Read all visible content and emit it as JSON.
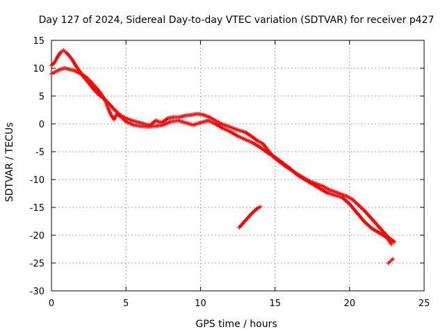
{
  "chart_data": {
    "type": "scatter",
    "title": "Day 127 of 2024, Sidereal Day-to-day VTEC variation (SDTVAR) for receiver p427",
    "xlabel": "GPS time / hours",
    "ylabel": "SDTVAR / TECUs",
    "xlim": [
      0,
      25
    ],
    "ylim": [
      -30,
      15
    ],
    "xticks": [
      0,
      5,
      10,
      15,
      20,
      25
    ],
    "yticks": [
      15,
      10,
      5,
      0,
      -5,
      -10,
      -15,
      -20,
      -25,
      -30
    ],
    "grid": true,
    "marker": "plus",
    "color": "#ff0000",
    "series": [
      {
        "name": "upper-track",
        "points": [
          [
            0.0,
            10.5
          ],
          [
            0.2,
            11.0
          ],
          [
            0.4,
            12.0
          ],
          [
            0.6,
            12.8
          ],
          [
            0.8,
            13.2
          ],
          [
            1.0,
            12.8
          ],
          [
            1.2,
            12.2
          ],
          [
            1.4,
            11.5
          ],
          [
            1.6,
            10.6
          ],
          [
            1.8,
            9.8
          ],
          [
            2.0,
            9.0
          ],
          [
            2.3,
            8.0
          ],
          [
            2.6,
            7.0
          ],
          [
            2.9,
            6.0
          ],
          [
            3.2,
            5.2
          ],
          [
            3.5,
            4.6
          ],
          [
            3.8,
            3.8
          ],
          [
            4.2,
            2.6
          ],
          [
            4.6,
            1.6
          ],
          [
            5.0,
            1.0
          ],
          [
            5.4,
            0.6
          ],
          [
            5.8,
            0.3
          ],
          [
            6.2,
            0.0
          ],
          [
            6.6,
            -0.3
          ],
          [
            7.0,
            0.6
          ],
          [
            7.4,
            0.2
          ],
          [
            7.8,
            1.0
          ],
          [
            8.2,
            1.2
          ],
          [
            8.6,
            1.2
          ],
          [
            9.0,
            1.5
          ],
          [
            9.4,
            1.6
          ],
          [
            9.8,
            1.8
          ],
          [
            10.2,
            1.6
          ],
          [
            10.6,
            1.2
          ],
          [
            11.0,
            0.6
          ],
          [
            11.4,
            0.0
          ],
          [
            11.8,
            -0.4
          ],
          [
            12.2,
            -0.8
          ],
          [
            12.6,
            -1.2
          ],
          [
            13.0,
            -1.5
          ],
          [
            13.4,
            -2.2
          ],
          [
            13.8,
            -3.0
          ],
          [
            14.2,
            -3.6
          ],
          [
            14.6,
            -5.0
          ],
          [
            15.0,
            -6.2
          ],
          [
            15.4,
            -7.0
          ],
          [
            15.8,
            -7.8
          ],
          [
            16.2,
            -8.5
          ],
          [
            16.6,
            -9.2
          ],
          [
            17.0,
            -9.8
          ],
          [
            17.4,
            -10.4
          ],
          [
            17.8,
            -10.8
          ],
          [
            18.2,
            -11.2
          ],
          [
            18.6,
            -11.8
          ],
          [
            19.0,
            -12.2
          ],
          [
            19.4,
            -12.6
          ],
          [
            19.8,
            -13.0
          ],
          [
            20.2,
            -13.6
          ],
          [
            20.6,
            -14.6
          ],
          [
            21.0,
            -15.6
          ],
          [
            21.4,
            -16.8
          ],
          [
            21.8,
            -18.0
          ],
          [
            22.2,
            -19.2
          ],
          [
            22.6,
            -20.4
          ],
          [
            23.0,
            -21.2
          ]
        ]
      },
      {
        "name": "lower-track",
        "points": [
          [
            0.0,
            9.0
          ],
          [
            0.3,
            9.4
          ],
          [
            0.6,
            9.8
          ],
          [
            0.9,
            10.0
          ],
          [
            1.2,
            9.8
          ],
          [
            1.5,
            9.6
          ],
          [
            1.8,
            9.2
          ],
          [
            2.1,
            8.8
          ],
          [
            2.4,
            8.2
          ],
          [
            2.7,
            7.4
          ],
          [
            3.0,
            6.5
          ],
          [
            3.3,
            5.5
          ],
          [
            3.6,
            4.2
          ],
          [
            3.8,
            2.8
          ],
          [
            4.0,
            1.6
          ],
          [
            4.2,
            0.8
          ],
          [
            4.4,
            1.8
          ],
          [
            4.7,
            1.2
          ],
          [
            5.0,
            0.4
          ],
          [
            5.5,
            -0.2
          ],
          [
            6.0,
            -0.4
          ],
          [
            6.5,
            -0.5
          ],
          [
            7.0,
            -0.4
          ],
          [
            7.5,
            -0.2
          ],
          [
            8.0,
            0.4
          ],
          [
            8.5,
            0.6
          ],
          [
            9.0,
            0.2
          ],
          [
            9.5,
            -0.2
          ],
          [
            10.0,
            0.2
          ],
          [
            10.5,
            0.6
          ],
          [
            11.0,
            0.0
          ],
          [
            11.5,
            -0.8
          ],
          [
            12.0,
            -1.4
          ],
          [
            12.5,
            -2.2
          ],
          [
            13.0,
            -2.8
          ],
          [
            13.5,
            -3.4
          ],
          [
            14.0,
            -4.2
          ],
          [
            14.5,
            -5.2
          ],
          [
            15.0,
            -6.0
          ],
          [
            15.5,
            -7.0
          ],
          [
            16.0,
            -8.0
          ],
          [
            16.5,
            -9.2
          ],
          [
            17.0,
            -10.0
          ],
          [
            17.5,
            -10.8
          ],
          [
            18.0,
            -11.6
          ],
          [
            18.5,
            -12.4
          ],
          [
            19.0,
            -12.8
          ],
          [
            19.5,
            -13.2
          ],
          [
            20.0,
            -14.4
          ],
          [
            20.5,
            -16.0
          ],
          [
            21.0,
            -17.6
          ],
          [
            21.5,
            -18.8
          ],
          [
            22.0,
            -19.6
          ],
          [
            22.5,
            -20.4
          ],
          [
            22.8,
            -21.6
          ]
        ]
      },
      {
        "name": "isolated-arc",
        "points": [
          [
            12.6,
            -18.6
          ],
          [
            12.8,
            -18.0
          ],
          [
            13.0,
            -17.4
          ],
          [
            13.2,
            -16.8
          ],
          [
            13.4,
            -16.2
          ],
          [
            13.6,
            -15.7
          ],
          [
            13.8,
            -15.2
          ],
          [
            14.0,
            -14.9
          ]
        ]
      },
      {
        "name": "late-segment",
        "points": [
          [
            22.6,
            -25.0
          ],
          [
            22.7,
            -24.8
          ],
          [
            22.8,
            -24.5
          ],
          [
            22.9,
            -24.3
          ]
        ]
      }
    ]
  }
}
